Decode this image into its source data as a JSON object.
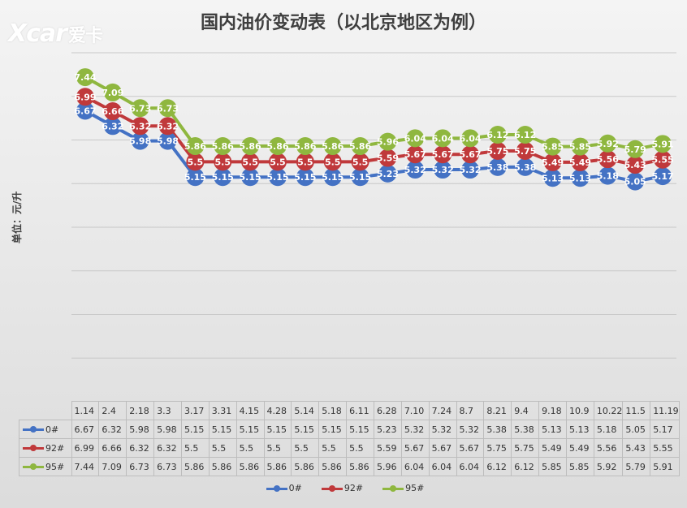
{
  "brand": {
    "logo_latin": "Xcar",
    "logo_cn": "爱卡"
  },
  "chart_data": {
    "type": "line",
    "title": "国内油价变动表（以北京地区为例）",
    "ylabel": "单位：元/升",
    "xlabel": "",
    "ylim": [
      0,
      8
    ],
    "grid": true,
    "legend": "bottom",
    "categories": [
      "1.14",
      "2.4",
      "2.18",
      "3.3",
      "3.17",
      "3.31",
      "4.15",
      "4.28",
      "5.14",
      "5.18",
      "6.11",
      "6.28",
      "7.10",
      "7.24",
      "8.7",
      "8.21",
      "9.4",
      "9.18",
      "10.9",
      "10.22",
      "11.5",
      "11.19"
    ],
    "series": [
      {
        "name": "0#",
        "color": "#4472c4",
        "values": [
          6.67,
          6.32,
          5.98,
          5.98,
          5.15,
          5.15,
          5.15,
          5.15,
          5.15,
          5.15,
          5.15,
          5.23,
          5.32,
          5.32,
          5.32,
          5.38,
          5.38,
          5.13,
          5.13,
          5.18,
          5.05,
          5.17
        ]
      },
      {
        "name": "92#",
        "color": "#c0393b",
        "values": [
          6.99,
          6.66,
          6.32,
          6.32,
          5.5,
          5.5,
          5.5,
          5.5,
          5.5,
          5.5,
          5.5,
          5.59,
          5.67,
          5.67,
          5.67,
          5.75,
          5.75,
          5.49,
          5.49,
          5.56,
          5.43,
          5.55
        ]
      },
      {
        "name": "95#",
        "color": "#8fb73f",
        "values": [
          7.44,
          7.09,
          6.73,
          6.73,
          5.86,
          5.86,
          5.86,
          5.86,
          5.86,
          5.86,
          5.86,
          5.96,
          6.04,
          6.04,
          6.04,
          6.12,
          6.12,
          5.85,
          5.85,
          5.92,
          5.79,
          5.91
        ]
      }
    ]
  }
}
